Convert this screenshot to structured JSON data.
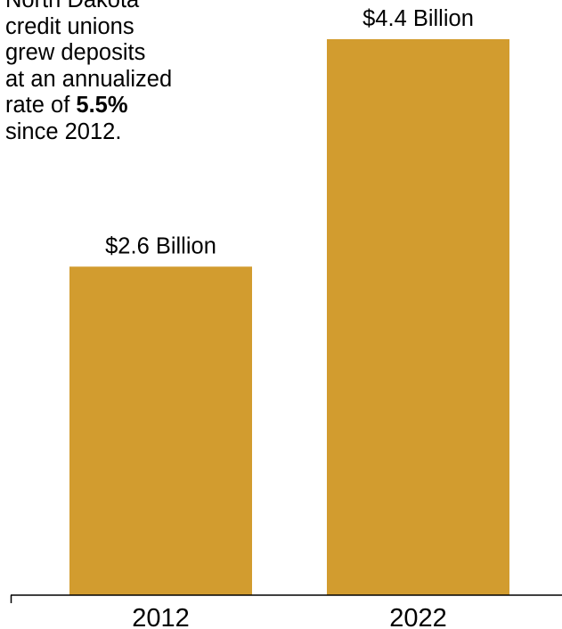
{
  "annotation": {
    "line0": "North Dakota",
    "line1": "credit unions",
    "line2": "grew deposits",
    "line3": "at an annualized",
    "line4_prefix": "rate of ",
    "line4_bold": "5.5%",
    "line5": "since 2012."
  },
  "chart_data": {
    "type": "bar",
    "categories": [
      "2012",
      "2022"
    ],
    "values": [
      2.6,
      4.4
    ],
    "data_labels": [
      "$2.6 Billion",
      "$4.4 Billion"
    ],
    "title": "",
    "xlabel": "",
    "ylabel": "",
    "ylim": [
      0,
      4.4
    ],
    "grid": false,
    "legend": "none",
    "bar_color": "#D29C2F",
    "axis_color": "#000000"
  }
}
